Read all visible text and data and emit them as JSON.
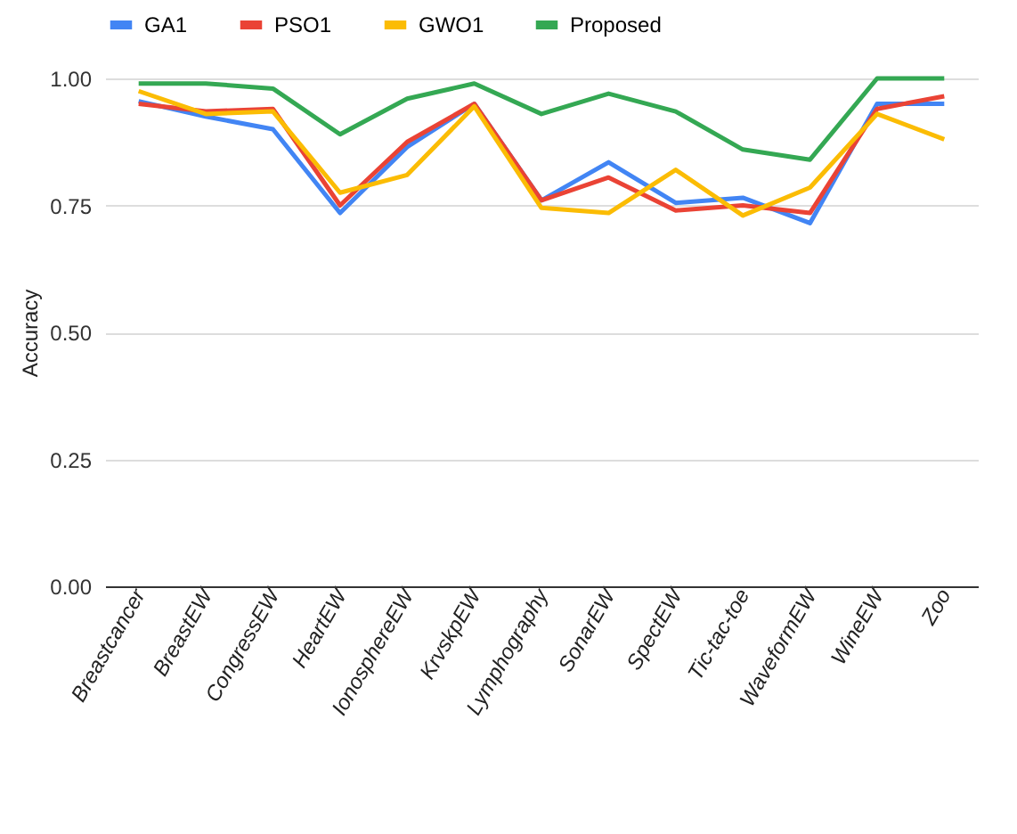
{
  "chart_data": {
    "type": "line",
    "ylabel": "Accuracy",
    "categories": [
      "Breastcancer",
      "BreastEW",
      "CongressEW",
      "HeartEW",
      "IonosphereEW",
      "KrvskpEW",
      "Lymphography",
      "SonarEW",
      "SpectEW",
      "Tic-tac-toe",
      "WaveformEW",
      "WineEW",
      "Zoo"
    ],
    "series": [
      {
        "name": "GA1",
        "color": "#4285f4",
        "values": [
          0.955,
          0.925,
          0.9,
          0.735,
          0.865,
          0.95,
          0.76,
          0.835,
          0.755,
          0.765,
          0.715,
          0.95,
          0.95
        ]
      },
      {
        "name": "PSO1",
        "color": "#ea4335",
        "values": [
          0.95,
          0.935,
          0.94,
          0.75,
          0.875,
          0.95,
          0.76,
          0.805,
          0.74,
          0.75,
          0.735,
          0.94,
          0.965
        ]
      },
      {
        "name": "GWO1",
        "color": "#fbbc04",
        "values": [
          0.975,
          0.93,
          0.935,
          0.775,
          0.81,
          0.945,
          0.745,
          0.735,
          0.82,
          0.73,
          0.785,
          0.93,
          0.88
        ]
      },
      {
        "name": "Proposed",
        "color": "#34a853",
        "values": [
          0.99,
          0.99,
          0.98,
          0.89,
          0.96,
          0.99,
          0.93,
          0.97,
          0.935,
          0.86,
          0.84,
          1.0,
          1.0
        ]
      }
    ],
    "ylim": [
      0,
      1
    ],
    "yticks": [
      {
        "value": 0,
        "label": "0.00"
      },
      {
        "value": 0.25,
        "label": "0.25"
      },
      {
        "value": 0.5,
        "label": "0.50"
      },
      {
        "value": 0.75,
        "label": "0.75"
      },
      {
        "value": 1,
        "label": "1.00"
      }
    ],
    "grid": "y",
    "legend": "top",
    "marker": "none",
    "line_style": "solid"
  }
}
